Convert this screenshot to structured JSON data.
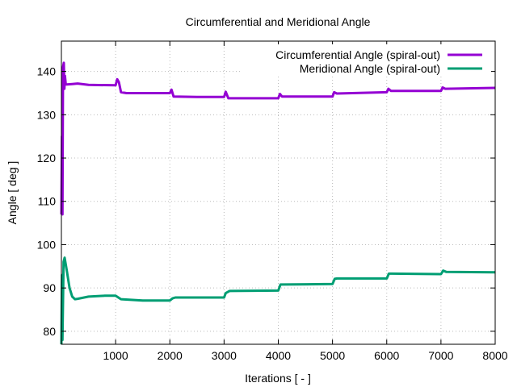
{
  "chart_data": {
    "type": "line",
    "title": "Circumferential and Meridional Angle",
    "xlabel": "Iterations [ - ]",
    "ylabel": "Angle [ deg ]",
    "xlim": [
      0,
      8000
    ],
    "ylim": [
      77,
      147
    ],
    "xticks": [
      1000,
      2000,
      3000,
      4000,
      5000,
      6000,
      7000,
      8000
    ],
    "yticks": [
      80,
      90,
      100,
      110,
      120,
      130,
      140
    ],
    "grid": true,
    "legend_position": "top-right",
    "series": [
      {
        "name": "Circumferential Angle (spiral-out)",
        "color": "#9400d3",
        "x": [
          0,
          10,
          20,
          30,
          45,
          55,
          65,
          80,
          100,
          200,
          300,
          500,
          1000,
          1030,
          1060,
          1100,
          1200,
          2000,
          2030,
          2070,
          2500,
          3000,
          3030,
          3080,
          4000,
          4030,
          4070,
          5000,
          5030,
          5080,
          6000,
          6030,
          6080,
          7000,
          7030,
          7080,
          8000
        ],
        "y": [
          107,
          125,
          107,
          141,
          142,
          136,
          139,
          137,
          137,
          137.1,
          137.2,
          136.9,
          136.8,
          138.2,
          137.5,
          135.2,
          135,
          135,
          135.8,
          134.2,
          134.1,
          134.1,
          135.3,
          133.8,
          133.8,
          134.8,
          134.2,
          134.2,
          135.2,
          134.9,
          135.2,
          136,
          135.5,
          135.5,
          136.3,
          136,
          136.2
        ]
      },
      {
        "name": "Meridional Angle (spiral-out)",
        "color": "#009e73",
        "x": [
          0,
          10,
          20,
          40,
          60,
          100,
          150,
          200,
          250,
          300,
          500,
          800,
          1000,
          1050,
          1100,
          1500,
          2000,
          2050,
          2100,
          3000,
          3030,
          3100,
          4000,
          4040,
          4080,
          5000,
          5040,
          5080,
          6000,
          6040,
          6100,
          7000,
          7040,
          7100,
          8000
        ],
        "y": [
          77,
          93,
          78,
          96,
          97,
          94,
          90,
          88,
          87.4,
          87.5,
          88,
          88.2,
          88.2,
          87.8,
          87.4,
          87.1,
          87.1,
          87.6,
          87.8,
          87.8,
          88.8,
          89.3,
          89.4,
          90.8,
          90.8,
          90.9,
          92.1,
          92.2,
          92.2,
          93.3,
          93.3,
          93.2,
          94,
          93.7,
          93.6
        ]
      }
    ]
  }
}
